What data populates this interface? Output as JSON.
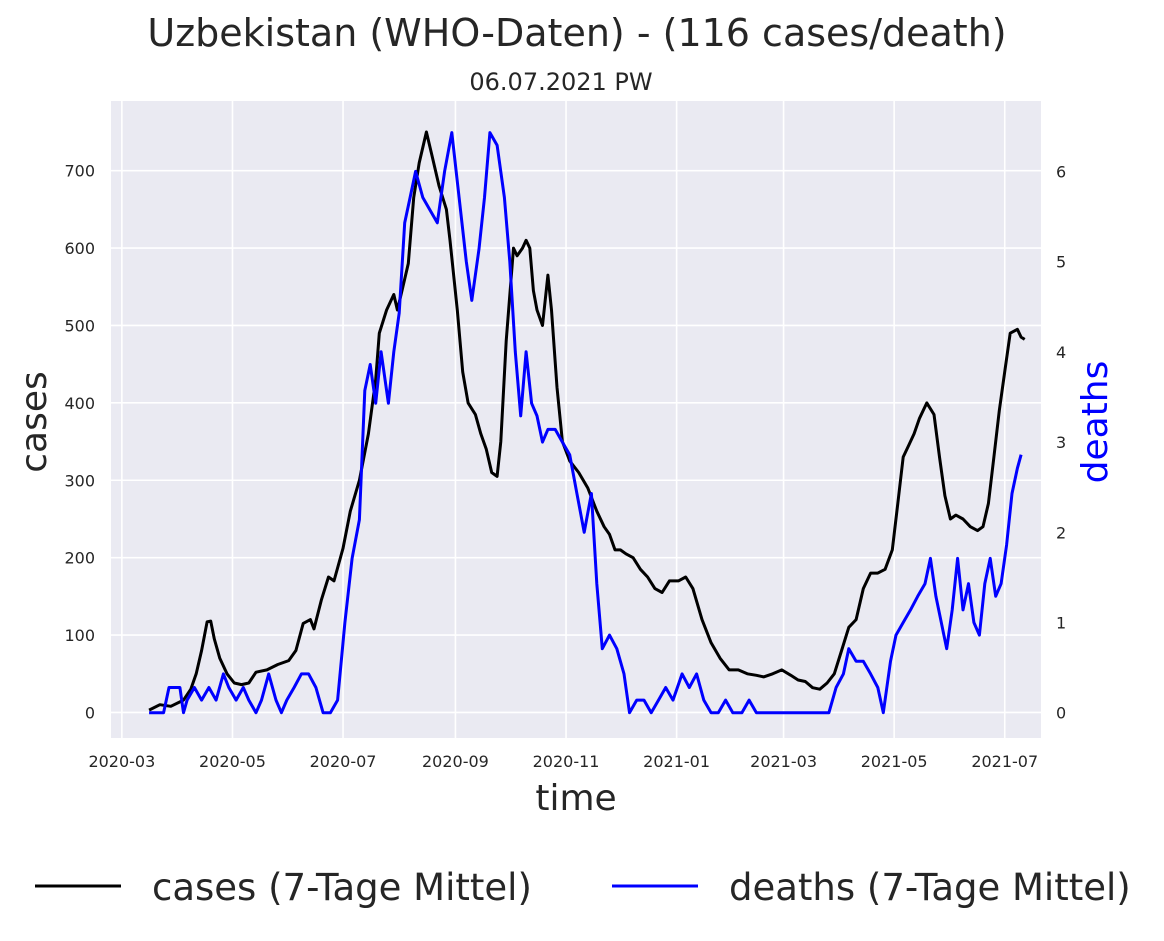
{
  "chart_data": {
    "type": "line",
    "title": "Uzbekistan (WHO-Daten) - (116 cases/death)",
    "subtitle": "06.07.2021 PW",
    "xlabel": "time",
    "ylabel": "cases",
    "y2label": "deaths",
    "x_ticks": [
      "2020-03",
      "2020-05",
      "2020-07",
      "2020-09",
      "2020-11",
      "2021-01",
      "2021-03",
      "2021-05",
      "2021-07"
    ],
    "y_ticks": [
      0,
      100,
      200,
      300,
      400,
      500,
      600,
      700
    ],
    "y2_ticks": [
      0,
      1,
      2,
      3,
      4,
      5,
      6
    ],
    "xlim": [
      "2020-02-24",
      "2021-07-21"
    ],
    "ylim": [
      -33,
      790
    ],
    "y2lim": [
      -0.28,
      6.78
    ],
    "grid": true,
    "legend_position": "bottom",
    "series": [
      {
        "name": "cases (7-Tage Mittel)",
        "axis": "left",
        "color": "#000000",
        "points": [
          [
            "2020-03-16",
            3
          ],
          [
            "2020-03-22",
            10
          ],
          [
            "2020-03-28",
            8
          ],
          [
            "2020-04-04",
            16
          ],
          [
            "2020-04-08",
            30
          ],
          [
            "2020-04-11",
            50
          ],
          [
            "2020-04-14",
            80
          ],
          [
            "2020-04-17",
            117
          ],
          [
            "2020-04-19",
            118
          ],
          [
            "2020-04-21",
            95
          ],
          [
            "2020-04-24",
            70
          ],
          [
            "2020-04-28",
            50
          ],
          [
            "2020-05-02",
            38
          ],
          [
            "2020-05-06",
            36
          ],
          [
            "2020-05-10",
            38
          ],
          [
            "2020-05-14",
            52
          ],
          [
            "2020-05-20",
            55
          ],
          [
            "2020-05-26",
            62
          ],
          [
            "2020-06-01",
            67
          ],
          [
            "2020-06-05",
            80
          ],
          [
            "2020-06-09",
            115
          ],
          [
            "2020-06-13",
            120
          ],
          [
            "2020-06-15",
            108
          ],
          [
            "2020-06-19",
            145
          ],
          [
            "2020-06-23",
            175
          ],
          [
            "2020-06-26",
            170
          ],
          [
            "2020-07-01",
            212
          ],
          [
            "2020-07-05",
            260
          ],
          [
            "2020-07-10",
            300
          ],
          [
            "2020-07-15",
            360
          ],
          [
            "2020-07-19",
            430
          ],
          [
            "2020-07-21",
            490
          ],
          [
            "2020-07-25",
            520
          ],
          [
            "2020-07-29",
            540
          ],
          [
            "2020-07-31",
            520
          ],
          [
            "2020-08-03",
            550
          ],
          [
            "2020-08-06",
            580
          ],
          [
            "2020-08-09",
            665
          ],
          [
            "2020-08-12",
            710
          ],
          [
            "2020-08-16",
            750
          ],
          [
            "2020-08-19",
            720
          ],
          [
            "2020-08-23",
            680
          ],
          [
            "2020-08-27",
            650
          ],
          [
            "2020-08-29",
            610
          ],
          [
            "2020-09-02",
            520
          ],
          [
            "2020-09-05",
            440
          ],
          [
            "2020-09-08",
            400
          ],
          [
            "2020-09-12",
            385
          ],
          [
            "2020-09-15",
            360
          ],
          [
            "2020-09-18",
            340
          ],
          [
            "2020-09-21",
            310
          ],
          [
            "2020-09-24",
            305
          ],
          [
            "2020-09-26",
            350
          ],
          [
            "2020-09-29",
            480
          ],
          [
            "2020-10-03",
            600
          ],
          [
            "2020-10-05",
            590
          ],
          [
            "2020-10-08",
            600
          ],
          [
            "2020-10-10",
            610
          ],
          [
            "2020-10-12",
            600
          ],
          [
            "2020-10-14",
            545
          ],
          [
            "2020-10-16",
            520
          ],
          [
            "2020-10-19",
            500
          ],
          [
            "2020-10-22",
            565
          ],
          [
            "2020-10-24",
            520
          ],
          [
            "2020-10-27",
            420
          ],
          [
            "2020-10-30",
            350
          ],
          [
            "2020-11-03",
            325
          ],
          [
            "2020-11-08",
            310
          ],
          [
            "2020-11-13",
            290
          ],
          [
            "2020-11-18",
            260
          ],
          [
            "2020-11-22",
            240
          ],
          [
            "2020-11-25",
            230
          ],
          [
            "2020-11-28",
            210
          ],
          [
            "2020-12-01",
            210
          ],
          [
            "2020-12-04",
            205
          ],
          [
            "2020-12-08",
            200
          ],
          [
            "2020-12-12",
            185
          ],
          [
            "2020-12-16",
            175
          ],
          [
            "2020-12-20",
            160
          ],
          [
            "2020-12-24",
            155
          ],
          [
            "2020-12-28",
            170
          ],
          [
            "2021-01-02",
            170
          ],
          [
            "2021-01-06",
            175
          ],
          [
            "2021-01-10",
            160
          ],
          [
            "2021-01-15",
            120
          ],
          [
            "2021-01-20",
            90
          ],
          [
            "2021-01-25",
            70
          ],
          [
            "2021-01-30",
            55
          ],
          [
            "2021-02-04",
            55
          ],
          [
            "2021-02-09",
            50
          ],
          [
            "2021-02-14",
            48
          ],
          [
            "2021-02-18",
            46
          ],
          [
            "2021-02-23",
            50
          ],
          [
            "2021-02-28",
            55
          ],
          [
            "2021-03-05",
            48
          ],
          [
            "2021-03-09",
            42
          ],
          [
            "2021-03-13",
            40
          ],
          [
            "2021-03-17",
            32
          ],
          [
            "2021-03-21",
            30
          ],
          [
            "2021-03-25",
            38
          ],
          [
            "2021-03-29",
            50
          ],
          [
            "2021-04-02",
            80
          ],
          [
            "2021-04-06",
            110
          ],
          [
            "2021-04-10",
            120
          ],
          [
            "2021-04-14",
            160
          ],
          [
            "2021-04-18",
            180
          ],
          [
            "2021-04-22",
            180
          ],
          [
            "2021-04-26",
            185
          ],
          [
            "2021-04-30",
            210
          ],
          [
            "2021-05-03",
            270
          ],
          [
            "2021-05-06",
            330
          ],
          [
            "2021-05-09",
            345
          ],
          [
            "2021-05-12",
            360
          ],
          [
            "2021-05-15",
            380
          ],
          [
            "2021-05-19",
            400
          ],
          [
            "2021-05-23",
            385
          ],
          [
            "2021-05-26",
            330
          ],
          [
            "2021-05-29",
            280
          ],
          [
            "2021-06-01",
            250
          ],
          [
            "2021-06-04",
            255
          ],
          [
            "2021-06-08",
            250
          ],
          [
            "2021-06-12",
            240
          ],
          [
            "2021-06-16",
            235
          ],
          [
            "2021-06-19",
            240
          ],
          [
            "2021-06-22",
            270
          ],
          [
            "2021-06-25",
            330
          ],
          [
            "2021-06-28",
            390
          ],
          [
            "2021-07-01",
            440
          ],
          [
            "2021-07-04",
            490
          ],
          [
            "2021-07-08",
            495
          ],
          [
            "2021-07-10",
            485
          ],
          [
            "2021-07-12",
            482
          ]
        ]
      },
      {
        "name": "deaths (7-Tage Mittel)",
        "axis": "right",
        "color": "#0000ff",
        "points": [
          [
            "2020-03-16",
            0
          ],
          [
            "2020-03-24",
            0
          ],
          [
            "2020-03-27",
            0.28
          ],
          [
            "2020-04-02",
            0.28
          ],
          [
            "2020-04-04",
            0
          ],
          [
            "2020-04-06",
            0.14
          ],
          [
            "2020-04-10",
            0.28
          ],
          [
            "2020-04-14",
            0.14
          ],
          [
            "2020-04-18",
            0.28
          ],
          [
            "2020-04-22",
            0.14
          ],
          [
            "2020-04-26",
            0.43
          ],
          [
            "2020-04-29",
            0.28
          ],
          [
            "2020-05-03",
            0.14
          ],
          [
            "2020-05-07",
            0.28
          ],
          [
            "2020-05-10",
            0.14
          ],
          [
            "2020-05-14",
            0
          ],
          [
            "2020-05-17",
            0.14
          ],
          [
            "2020-05-21",
            0.43
          ],
          [
            "2020-05-25",
            0.14
          ],
          [
            "2020-05-28",
            0
          ],
          [
            "2020-05-31",
            0.14
          ],
          [
            "2020-06-04",
            0.28
          ],
          [
            "2020-06-08",
            0.43
          ],
          [
            "2020-06-12",
            0.43
          ],
          [
            "2020-06-16",
            0.28
          ],
          [
            "2020-06-20",
            0
          ],
          [
            "2020-06-24",
            0
          ],
          [
            "2020-06-28",
            0.14
          ],
          [
            "2020-07-02",
            1
          ],
          [
            "2020-07-06",
            1.71
          ],
          [
            "2020-07-10",
            2.14
          ],
          [
            "2020-07-13",
            3.57
          ],
          [
            "2020-07-16",
            3.86
          ],
          [
            "2020-07-19",
            3.43
          ],
          [
            "2020-07-22",
            4
          ],
          [
            "2020-07-26",
            3.43
          ],
          [
            "2020-07-29",
            4
          ],
          [
            "2020-08-01",
            4.43
          ],
          [
            "2020-08-04",
            5.43
          ],
          [
            "2020-08-07",
            5.71
          ],
          [
            "2020-08-10",
            6
          ],
          [
            "2020-08-14",
            5.71
          ],
          [
            "2020-08-18",
            5.57
          ],
          [
            "2020-08-22",
            5.43
          ],
          [
            "2020-08-26",
            6
          ],
          [
            "2020-08-30",
            6.43
          ],
          [
            "2020-09-03",
            5.71
          ],
          [
            "2020-09-07",
            5
          ],
          [
            "2020-09-10",
            4.57
          ],
          [
            "2020-09-14",
            5.14
          ],
          [
            "2020-09-17",
            5.71
          ],
          [
            "2020-09-20",
            6.43
          ],
          [
            "2020-09-24",
            6.29
          ],
          [
            "2020-09-28",
            5.71
          ],
          [
            "2020-10-01",
            5
          ],
          [
            "2020-10-04",
            4
          ],
          [
            "2020-10-07",
            3.29
          ],
          [
            "2020-10-10",
            4
          ],
          [
            "2020-10-13",
            3.43
          ],
          [
            "2020-10-16",
            3.29
          ],
          [
            "2020-10-19",
            3
          ],
          [
            "2020-10-22",
            3.14
          ],
          [
            "2020-10-26",
            3.14
          ],
          [
            "2020-10-30",
            3
          ],
          [
            "2020-11-03",
            2.86
          ],
          [
            "2020-11-07",
            2.43
          ],
          [
            "2020-11-11",
            2
          ],
          [
            "2020-11-15",
            2.43
          ],
          [
            "2020-11-18",
            1.43
          ],
          [
            "2020-11-21",
            0.71
          ],
          [
            "2020-11-25",
            0.86
          ],
          [
            "2020-11-29",
            0.71
          ],
          [
            "2020-12-03",
            0.43
          ],
          [
            "2020-12-06",
            0
          ],
          [
            "2020-12-10",
            0.14
          ],
          [
            "2020-12-14",
            0.14
          ],
          [
            "2020-12-18",
            0
          ],
          [
            "2020-12-22",
            0.14
          ],
          [
            "2020-12-26",
            0.28
          ],
          [
            "2020-12-30",
            0.14
          ],
          [
            "2021-01-04",
            0.43
          ],
          [
            "2021-01-08",
            0.28
          ],
          [
            "2021-01-12",
            0.43
          ],
          [
            "2021-01-16",
            0.14
          ],
          [
            "2021-01-20",
            0
          ],
          [
            "2021-01-24",
            0
          ],
          [
            "2021-01-28",
            0.14
          ],
          [
            "2021-02-01",
            0
          ],
          [
            "2021-02-06",
            0
          ],
          [
            "2021-02-10",
            0.14
          ],
          [
            "2021-02-14",
            0
          ],
          [
            "2021-02-20",
            0
          ],
          [
            "2021-02-28",
            0
          ],
          [
            "2021-03-10",
            0
          ],
          [
            "2021-03-20",
            0
          ],
          [
            "2021-03-26",
            0
          ],
          [
            "2021-03-30",
            0.28
          ],
          [
            "2021-04-03",
            0.43
          ],
          [
            "2021-04-06",
            0.71
          ],
          [
            "2021-04-10",
            0.57
          ],
          [
            "2021-04-14",
            0.57
          ],
          [
            "2021-04-18",
            0.43
          ],
          [
            "2021-04-22",
            0.28
          ],
          [
            "2021-04-25",
            0
          ],
          [
            "2021-04-29",
            0.57
          ],
          [
            "2021-05-02",
            0.86
          ],
          [
            "2021-05-06",
            1
          ],
          [
            "2021-05-10",
            1.14
          ],
          [
            "2021-05-14",
            1.29
          ],
          [
            "2021-05-18",
            1.43
          ],
          [
            "2021-05-21",
            1.71
          ],
          [
            "2021-05-24",
            1.29
          ],
          [
            "2021-05-27",
            1
          ],
          [
            "2021-05-30",
            0.71
          ],
          [
            "2021-06-02",
            1.14
          ],
          [
            "2021-06-05",
            1.71
          ],
          [
            "2021-06-08",
            1.14
          ],
          [
            "2021-06-11",
            1.43
          ],
          [
            "2021-06-14",
            1
          ],
          [
            "2021-06-17",
            0.86
          ],
          [
            "2021-06-20",
            1.43
          ],
          [
            "2021-06-23",
            1.71
          ],
          [
            "2021-06-26",
            1.29
          ],
          [
            "2021-06-29",
            1.43
          ],
          [
            "2021-07-02",
            1.86
          ],
          [
            "2021-07-05",
            2.43
          ],
          [
            "2021-07-08",
            2.71
          ],
          [
            "2021-07-10",
            2.86
          ]
        ]
      }
    ]
  }
}
